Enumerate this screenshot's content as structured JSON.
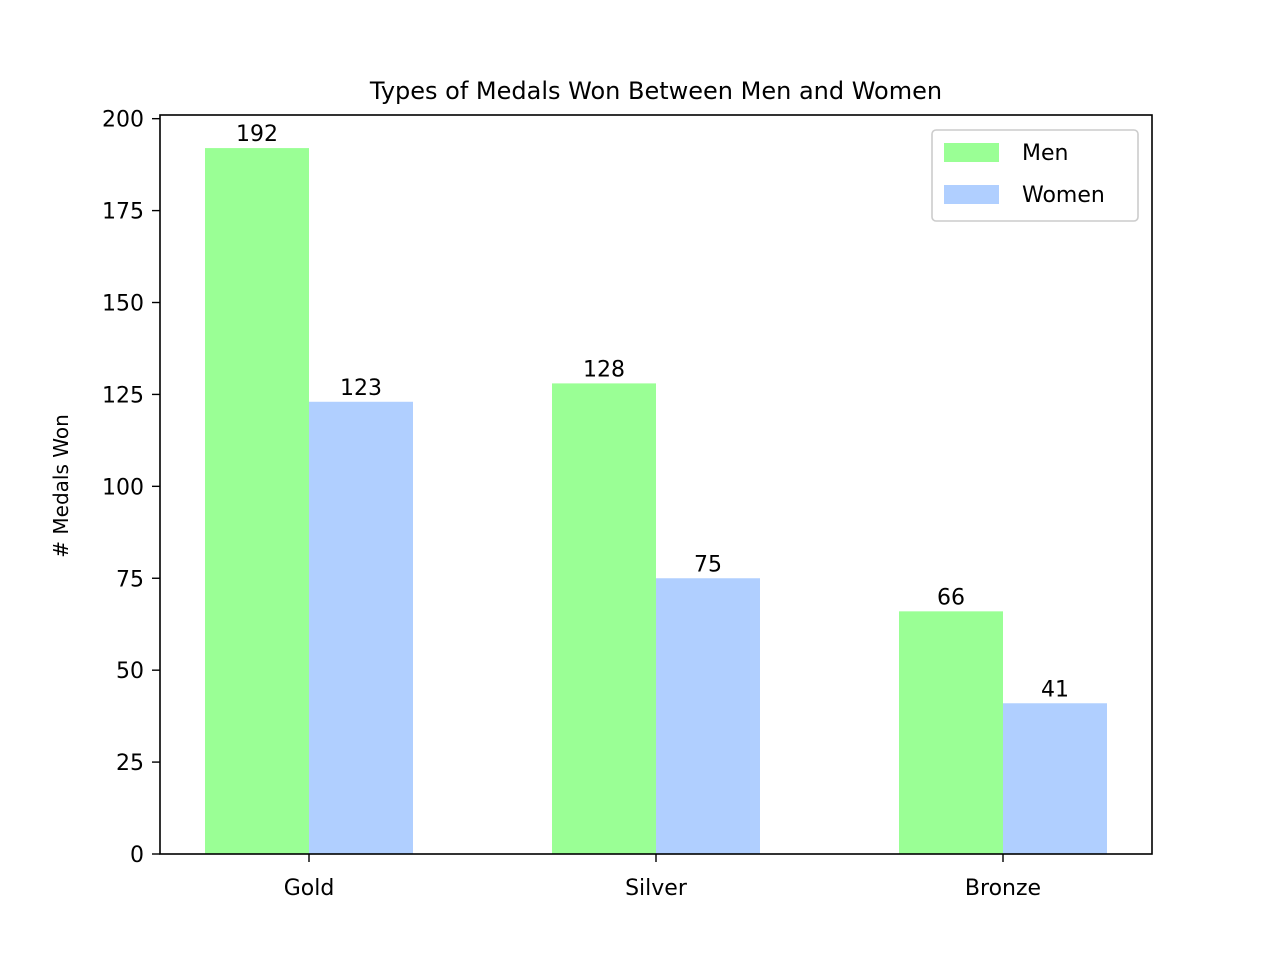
{
  "chart_data": {
    "type": "bar",
    "title": "Types of Medals Won Between Men and Women",
    "xlabel": "",
    "ylabel": "# Medals Won",
    "categories": [
      "Gold",
      "Silver",
      "Bronze"
    ],
    "series": [
      {
        "name": "Men",
        "values": [
          192,
          128,
          66
        ],
        "color": "#9aff95"
      },
      {
        "name": "Women",
        "values": [
          123,
          75,
          41
        ],
        "color": "#b0cfff"
      }
    ],
    "ylim": [
      0,
      201
    ],
    "yticks": [
      0,
      25,
      50,
      75,
      100,
      125,
      150,
      175,
      200
    ],
    "data_labels": true,
    "legend": {
      "position": "top-right"
    },
    "grid": false
  }
}
